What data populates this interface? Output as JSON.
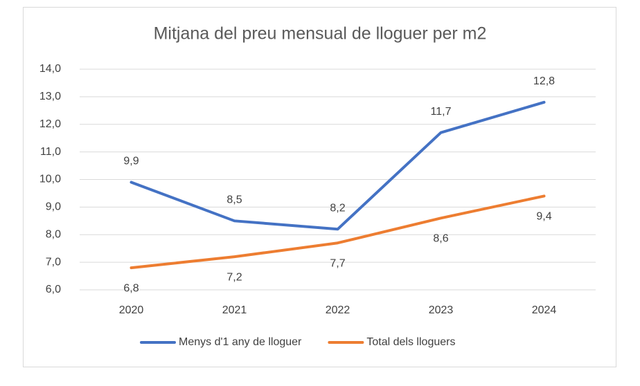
{
  "chart_data": {
    "type": "line",
    "title": "Mitjana del preu mensual de lloguer per m2",
    "categories": [
      "2020",
      "2021",
      "2022",
      "2023",
      "2024"
    ],
    "series": [
      {
        "name": "Menys d'1 any de lloguer",
        "color": "#4472c4",
        "values": [
          9.9,
          8.5,
          8.2,
          11.7,
          12.8
        ],
        "value_labels": [
          "9,9",
          "8,5",
          "8,2",
          "11,7",
          "12,8"
        ],
        "label_position": "above"
      },
      {
        "name": "Total dels lloguers",
        "color": "#ed7d31",
        "values": [
          6.8,
          7.2,
          7.7,
          8.6,
          9.4
        ],
        "value_labels": [
          "6,8",
          "7,2",
          "7,7",
          "8,6",
          "9,4"
        ],
        "label_position": "below"
      }
    ],
    "ylim": [
      6,
      14
    ],
    "yticks": [
      {
        "value": 6,
        "label": "6,0"
      },
      {
        "value": 7,
        "label": "7,0"
      },
      {
        "value": 8,
        "label": "8,0"
      },
      {
        "value": 9,
        "label": "9,0"
      },
      {
        "value": 10,
        "label": "10,0"
      },
      {
        "value": 11,
        "label": "11,0"
      },
      {
        "value": 12,
        "label": "12,0"
      },
      {
        "value": 13,
        "label": "13,0"
      },
      {
        "value": 14,
        "label": "14,0"
      }
    ],
    "grid": true,
    "legend": "bottom"
  }
}
